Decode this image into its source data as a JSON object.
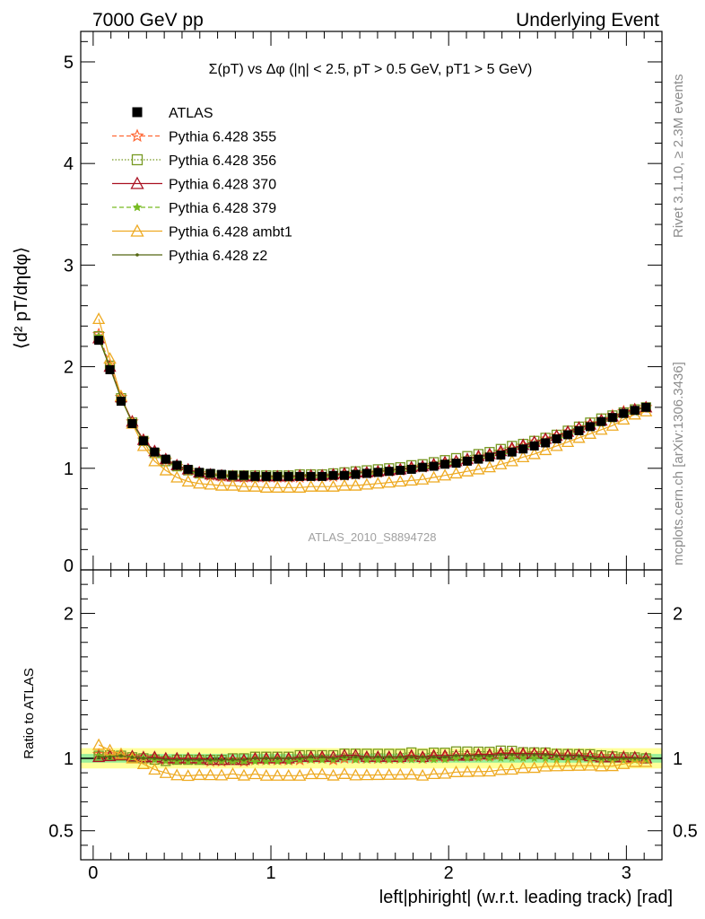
{
  "header": {
    "left": "7000 GeV pp",
    "right": "Underlying Event"
  },
  "side": {
    "rivet": "Rivet 3.1.10, ≥ 2.3M events",
    "site": "mcplots.cern.ch [arXiv:1306.3436]"
  },
  "chart_data": [
    {
      "type": "line",
      "title": "Σ(pT) vs Δφ (|η| < 2.5, pT > 0.5 GeV, pT1 > 5 GeV)",
      "xlabel": "left|phiright| (w.r.t. leading track) [rad]",
      "ylabel": "⟨d² pT/dηdφ⟩",
      "analysis_label": "ATLAS_2010_S8894728",
      "xlim": [
        -0.07,
        3.2
      ],
      "ylim": [
        0,
        5.3
      ],
      "x_ticks": [
        0,
        1,
        2,
        3
      ],
      "x_tick_labels": [
        "0",
        "1",
        "2",
        "3"
      ],
      "y_ticks": [
        0,
        1,
        2,
        3,
        4,
        5
      ],
      "y_tick_labels": [
        "0",
        "1",
        "2",
        "3",
        "4",
        "5"
      ],
      "legend_position": "top-left",
      "grid": false,
      "x": [
        0.0314,
        0.0942,
        0.157,
        0.2199,
        0.2827,
        0.3456,
        0.4084,
        0.4712,
        0.5341,
        0.5969,
        0.6597,
        0.7226,
        0.7854,
        0.8482,
        0.9111,
        0.9739,
        1.0367,
        1.0996,
        1.1624,
        1.2252,
        1.2881,
        1.3509,
        1.4137,
        1.4765,
        1.5394,
        1.6022,
        1.665,
        1.7279,
        1.7907,
        1.8535,
        1.9164,
        1.9792,
        2.042,
        2.1049,
        2.1677,
        2.2305,
        2.2934,
        2.3562,
        2.419,
        2.4819,
        2.5447,
        2.6075,
        2.6704,
        2.7332,
        2.796,
        2.8588,
        2.9217,
        2.9845,
        3.0473,
        3.1102
      ],
      "series": [
        {
          "name": "ATLAS",
          "color": "#000000",
          "marker": "filled-square",
          "line": "none",
          "values": [
            2.26,
            1.97,
            1.66,
            1.44,
            1.27,
            1.16,
            1.09,
            1.03,
            0.99,
            0.96,
            0.95,
            0.94,
            0.93,
            0.93,
            0.92,
            0.92,
            0.92,
            0.92,
            0.92,
            0.92,
            0.92,
            0.93,
            0.93,
            0.94,
            0.95,
            0.96,
            0.97,
            0.98,
            0.99,
            1.01,
            1.02,
            1.04,
            1.05,
            1.07,
            1.09,
            1.11,
            1.13,
            1.16,
            1.19,
            1.22,
            1.25,
            1.29,
            1.33,
            1.37,
            1.41,
            1.46,
            1.5,
            1.54,
            1.57,
            1.6
          ]
        },
        {
          "name": "Pythia 6.428 355",
          "color": "#ff6633",
          "marker": "open-star",
          "line": "dashed",
          "values": [
            2.32,
            2.02,
            1.7,
            1.46,
            1.28,
            1.16,
            1.08,
            1.02,
            0.98,
            0.95,
            0.93,
            0.92,
            0.92,
            0.91,
            0.91,
            0.91,
            0.91,
            0.91,
            0.91,
            0.92,
            0.92,
            0.92,
            0.93,
            0.94,
            0.95,
            0.96,
            0.97,
            0.98,
            1.0,
            1.01,
            1.03,
            1.05,
            1.07,
            1.09,
            1.11,
            1.13,
            1.16,
            1.19,
            1.22,
            1.26,
            1.29,
            1.32,
            1.36,
            1.4,
            1.44,
            1.48,
            1.52,
            1.56,
            1.58,
            1.6
          ]
        },
        {
          "name": "Pythia 6.428 356",
          "color": "#779922",
          "marker": "open-square",
          "line": "dotted",
          "values": [
            2.3,
            2.01,
            1.69,
            1.45,
            1.27,
            1.15,
            1.07,
            1.02,
            0.98,
            0.95,
            0.94,
            0.93,
            0.93,
            0.93,
            0.93,
            0.93,
            0.93,
            0.93,
            0.94,
            0.94,
            0.94,
            0.95,
            0.96,
            0.97,
            0.98,
            0.99,
            1.0,
            1.01,
            1.03,
            1.04,
            1.06,
            1.08,
            1.1,
            1.12,
            1.14,
            1.16,
            1.19,
            1.22,
            1.24,
            1.27,
            1.3,
            1.33,
            1.37,
            1.41,
            1.45,
            1.49,
            1.52,
            1.55,
            1.58,
            1.6
          ]
        },
        {
          "name": "Pythia 6.428 370",
          "color": "#aa1122",
          "marker": "open-triangle",
          "line": "solid",
          "values": [
            2.28,
            2.0,
            1.7,
            1.46,
            1.28,
            1.17,
            1.09,
            1.03,
            0.99,
            0.96,
            0.94,
            0.93,
            0.92,
            0.92,
            0.92,
            0.92,
            0.92,
            0.92,
            0.93,
            0.93,
            0.93,
            0.94,
            0.95,
            0.96,
            0.96,
            0.97,
            0.98,
            0.99,
            1.01,
            1.02,
            1.04,
            1.06,
            1.07,
            1.09,
            1.12,
            1.14,
            1.17,
            1.2,
            1.23,
            1.26,
            1.29,
            1.32,
            1.36,
            1.4,
            1.43,
            1.47,
            1.51,
            1.55,
            1.58,
            1.6
          ]
        },
        {
          "name": "Pythia 6.428 379",
          "color": "#77bb22",
          "marker": "filled-star",
          "line": "dashed",
          "values": [
            2.3,
            2.0,
            1.69,
            1.45,
            1.27,
            1.15,
            1.07,
            1.01,
            0.97,
            0.94,
            0.93,
            0.92,
            0.91,
            0.91,
            0.9,
            0.9,
            0.9,
            0.9,
            0.91,
            0.91,
            0.91,
            0.92,
            0.93,
            0.93,
            0.94,
            0.95,
            0.96,
            0.97,
            0.98,
            1.0,
            1.01,
            1.03,
            1.05,
            1.07,
            1.09,
            1.11,
            1.13,
            1.16,
            1.19,
            1.22,
            1.25,
            1.28,
            1.32,
            1.36,
            1.4,
            1.44,
            1.48,
            1.52,
            1.55,
            1.58
          ]
        },
        {
          "name": "Pythia 6.428 ambt1",
          "color": "#eeaa22",
          "marker": "open-triangle",
          "line": "solid",
          "values": [
            2.47,
            2.08,
            1.71,
            1.44,
            1.22,
            1.07,
            0.98,
            0.91,
            0.87,
            0.85,
            0.84,
            0.83,
            0.83,
            0.82,
            0.82,
            0.81,
            0.81,
            0.81,
            0.81,
            0.82,
            0.82,
            0.82,
            0.83,
            0.83,
            0.84,
            0.85,
            0.86,
            0.87,
            0.88,
            0.89,
            0.91,
            0.93,
            0.95,
            0.97,
            0.99,
            1.01,
            1.04,
            1.07,
            1.11,
            1.14,
            1.18,
            1.22,
            1.26,
            1.3,
            1.34,
            1.38,
            1.42,
            1.48,
            1.53,
            1.56
          ]
        },
        {
          "name": "Pythia 6.428 z2",
          "color": "#556611",
          "marker": "small-dot",
          "line": "solid",
          "values": [
            2.28,
            1.99,
            1.69,
            1.45,
            1.27,
            1.16,
            1.08,
            1.02,
            0.98,
            0.95,
            0.94,
            0.93,
            0.92,
            0.92,
            0.92,
            0.92,
            0.92,
            0.92,
            0.92,
            0.93,
            0.93,
            0.93,
            0.94,
            0.95,
            0.96,
            0.97,
            0.98,
            0.99,
            1.0,
            1.02,
            1.03,
            1.05,
            1.07,
            1.09,
            1.11,
            1.13,
            1.16,
            1.19,
            1.22,
            1.25,
            1.28,
            1.31,
            1.35,
            1.39,
            1.42,
            1.46,
            1.5,
            1.54,
            1.57,
            1.6
          ]
        }
      ]
    },
    {
      "type": "line",
      "title": "",
      "ylabel": "Ratio to ATLAS",
      "xlabel": "left|phiright| (w.r.t. leading track) [rad]",
      "xlim": [
        -0.07,
        3.2
      ],
      "ylim": [
        0.3,
        2.3
      ],
      "x_ticks": [
        0,
        1,
        2,
        3
      ],
      "x_tick_labels": [
        "0",
        "1",
        "2",
        "3"
      ],
      "y_ticks": [
        0.5,
        1,
        2
      ],
      "y_tick_labels": [
        "0.5",
        "1",
        "2"
      ],
      "band_stat": [
        0.97,
        1.03
      ],
      "band_total": [
        0.93,
        1.07
      ],
      "band_colors": {
        "stat": "#99ee99",
        "total": "#ffff99"
      },
      "reference_line": 1.0,
      "ratio_series_from": "first chart, divided by ATLAS"
    }
  ]
}
